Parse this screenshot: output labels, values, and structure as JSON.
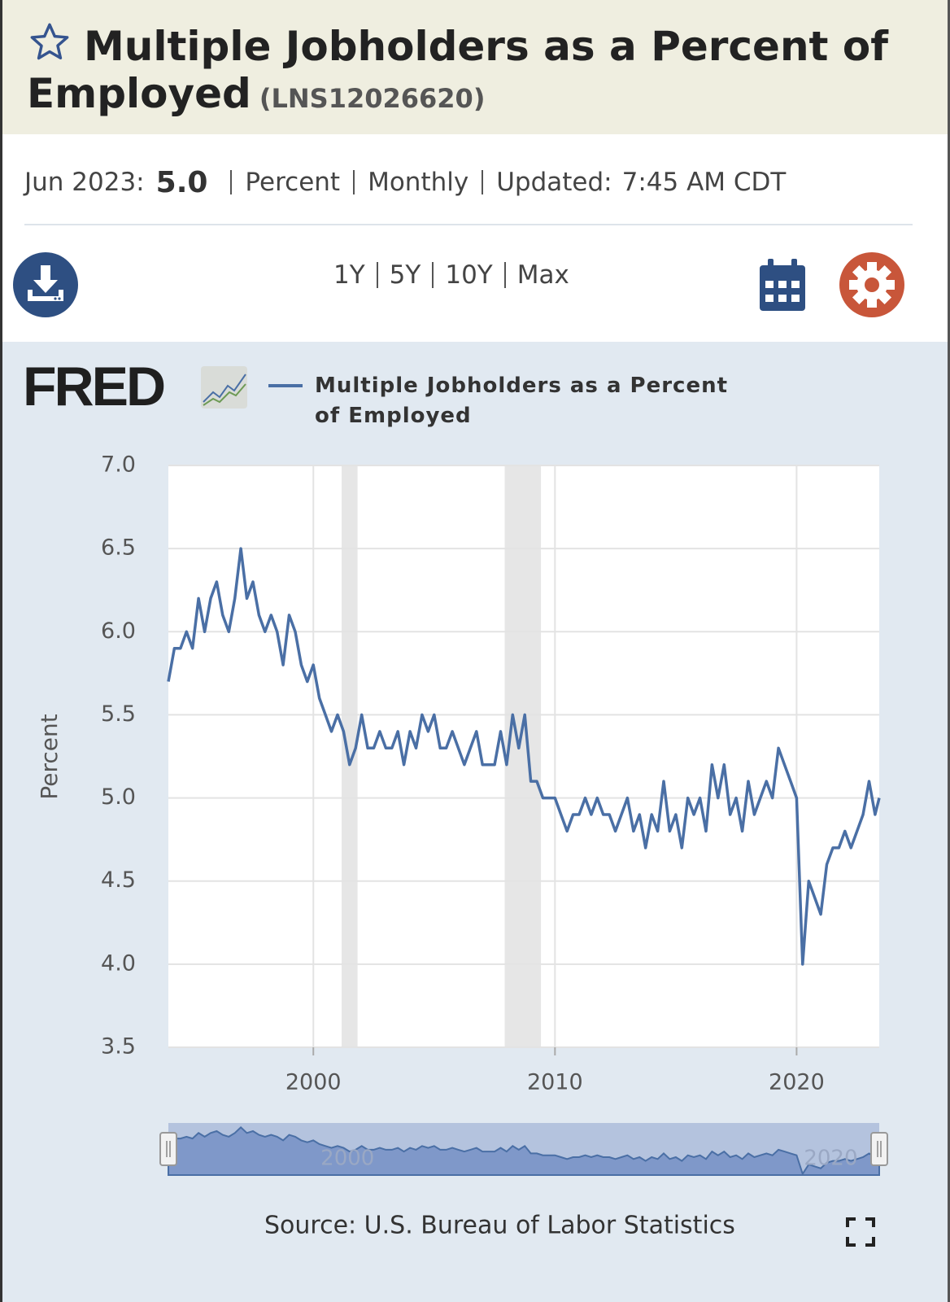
{
  "header": {
    "title": "Multiple Jobholders as a Percent of Employed",
    "series_id": "(LNS12026620)"
  },
  "info": {
    "date": "Jun 2023:",
    "latest": "5.0",
    "units": "Percent",
    "frequency": "Monthly",
    "updated_label": "Updated:",
    "updated_time": "7:45 AM CDT"
  },
  "ranges": [
    "1Y",
    "5Y",
    "10Y",
    "Max"
  ],
  "logo": "FRED",
  "source": "Source: U.S. Bureau of Labor Statistics",
  "chart_data": {
    "type": "line",
    "ylabel": "Percent",
    "xlim": [
      1994,
      2023.42
    ],
    "xticks": [
      2000,
      2010,
      2020
    ],
    "ylim": [
      3.5,
      7.0
    ],
    "yticks": [
      {
        "value": 3.5,
        "label": "3.5"
      },
      {
        "value": 4.0,
        "label": "4.0"
      },
      {
        "value": 4.5,
        "label": "4.5"
      },
      {
        "value": 5.0,
        "label": "5.0"
      },
      {
        "value": 5.5,
        "label": "5.5"
      },
      {
        "value": 6.0,
        "label": "6.0"
      },
      {
        "value": 6.5,
        "label": "6.5"
      },
      {
        "value": 7.0,
        "label": "7.0"
      }
    ],
    "grid": true,
    "shaded_ranges": [
      [
        2001.17,
        2001.83
      ],
      [
        2007.92,
        2009.42
      ]
    ],
    "x": [
      1994,
      1994.25,
      1994.5,
      1994.75,
      1995,
      1995.25,
      1995.5,
      1995.75,
      1996,
      1996.25,
      1996.5,
      1996.75,
      1997,
      1997.25,
      1997.5,
      1997.75,
      1998,
      1998.25,
      1998.5,
      1998.75,
      1999,
      1999.25,
      1999.5,
      1999.75,
      2000,
      2000.25,
      2000.5,
      2000.75,
      2001,
      2001.25,
      2001.5,
      2001.75,
      2002,
      2002.25,
      2002.5,
      2002.75,
      2003,
      2003.25,
      2003.5,
      2003.75,
      2004,
      2004.25,
      2004.5,
      2004.75,
      2005,
      2005.25,
      2005.5,
      2005.75,
      2006,
      2006.25,
      2006.5,
      2006.75,
      2007,
      2007.25,
      2007.5,
      2007.75,
      2008,
      2008.25,
      2008.5,
      2008.75,
      2009,
      2009.25,
      2009.5,
      2009.75,
      2010,
      2010.25,
      2010.5,
      2010.75,
      2011,
      2011.25,
      2011.5,
      2011.75,
      2012,
      2012.25,
      2012.5,
      2012.75,
      2013,
      2013.25,
      2013.5,
      2013.75,
      2014,
      2014.25,
      2014.5,
      2014.75,
      2015,
      2015.25,
      2015.5,
      2015.75,
      2016,
      2016.25,
      2016.5,
      2016.75,
      2017,
      2017.25,
      2017.5,
      2017.75,
      2018,
      2018.25,
      2018.5,
      2018.75,
      2019,
      2019.25,
      2019.5,
      2019.75,
      2020,
      2020.25,
      2020.5,
      2020.75,
      2021,
      2021.25,
      2021.5,
      2021.75,
      2022,
      2022.25,
      2022.5,
      2022.75,
      2023,
      2023.25,
      2023.42
    ],
    "series": [
      {
        "name": "Multiple Jobholders as a Percent of Employed",
        "color": "#4a6fa5",
        "values": [
          5.7,
          5.9,
          5.9,
          6.0,
          5.9,
          6.2,
          6.0,
          6.2,
          6.3,
          6.1,
          6.0,
          6.2,
          6.5,
          6.2,
          6.3,
          6.1,
          6.0,
          6.1,
          6.0,
          5.8,
          6.1,
          6.0,
          5.8,
          5.7,
          5.8,
          5.6,
          5.5,
          5.4,
          5.5,
          5.4,
          5.2,
          5.3,
          5.5,
          5.3,
          5.3,
          5.4,
          5.3,
          5.3,
          5.4,
          5.2,
          5.4,
          5.3,
          5.5,
          5.4,
          5.5,
          5.3,
          5.3,
          5.4,
          5.3,
          5.2,
          5.3,
          5.4,
          5.2,
          5.2,
          5.2,
          5.4,
          5.2,
          5.5,
          5.3,
          5.5,
          5.1,
          5.1,
          5.0,
          5.0,
          5.0,
          4.9,
          4.8,
          4.9,
          4.9,
          5.0,
          4.9,
          5.0,
          4.9,
          4.9,
          4.8,
          4.9,
          5.0,
          4.8,
          4.9,
          4.7,
          4.9,
          4.8,
          5.1,
          4.8,
          4.9,
          4.7,
          5.0,
          4.9,
          5.0,
          4.8,
          5.2,
          5.0,
          5.2,
          4.9,
          5.0,
          4.8,
          5.1,
          4.9,
          5.0,
          5.1,
          5.0,
          5.3,
          5.2,
          5.1,
          5.0,
          4.0,
          4.5,
          4.4,
          4.3,
          4.6,
          4.7,
          4.7,
          4.8,
          4.7,
          4.8,
          4.9,
          5.1,
          4.9,
          5.0
        ]
      }
    ]
  }
}
